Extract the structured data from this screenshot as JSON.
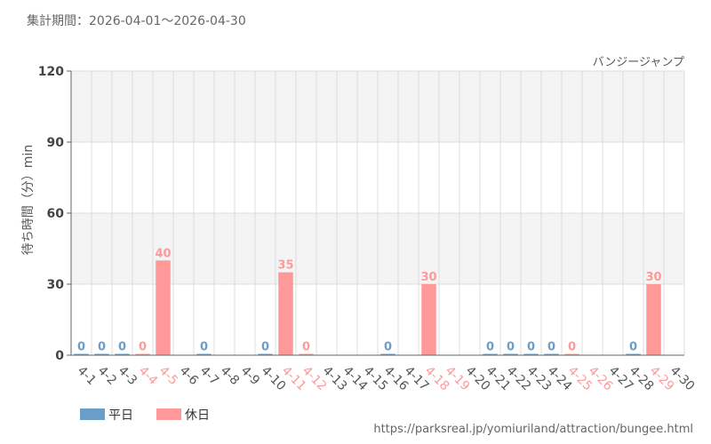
{
  "header": {
    "period": "集計期間：2026-04-01〜2026-04-30"
  },
  "colors": {
    "weekday": "#6a9ec8",
    "holiday": "#ff9999",
    "grid": "#dddddd",
    "band": "#f4f4f4"
  },
  "chart_data": {
    "type": "bar",
    "title": "バンジージャンプ",
    "xlabel": "",
    "ylabel": "待ち時間（分）min",
    "ylim": [
      0,
      120
    ],
    "yticks": [
      0,
      30,
      60,
      90,
      120
    ],
    "categories": [
      "4-1",
      "4-2",
      "4-3",
      "4-4",
      "4-5",
      "4-6",
      "4-7",
      "4-8",
      "4-9",
      "4-10",
      "4-11",
      "4-12",
      "4-13",
      "4-14",
      "4-15",
      "4-16",
      "4-17",
      "4-18",
      "4-19",
      "4-20",
      "4-21",
      "4-22",
      "4-23",
      "4-24",
      "4-25",
      "4-26",
      "4-27",
      "4-28",
      "4-29",
      "4-30"
    ],
    "day_type": [
      "weekday",
      "weekday",
      "weekday",
      "holiday",
      "holiday",
      "weekday",
      "weekday",
      "weekday",
      "weekday",
      "weekday",
      "holiday",
      "holiday",
      "weekday",
      "weekday",
      "weekday",
      "weekday",
      "weekday",
      "holiday",
      "holiday",
      "weekday",
      "weekday",
      "weekday",
      "weekday",
      "weekday",
      "holiday",
      "holiday",
      "weekday",
      "weekday",
      "holiday",
      "weekday"
    ],
    "values": [
      0,
      0,
      0,
      0,
      40,
      null,
      0,
      null,
      null,
      0,
      35,
      0,
      null,
      null,
      null,
      0,
      null,
      30,
      null,
      null,
      0,
      0,
      0,
      0,
      0,
      null,
      null,
      0,
      30,
      null
    ],
    "legend": [
      {
        "name": "平日",
        "type": "weekday"
      },
      {
        "name": "休日",
        "type": "holiday"
      }
    ]
  },
  "footer": {
    "source": "https://parksreal.jp/yomiuriland/attraction/bungee.html"
  }
}
